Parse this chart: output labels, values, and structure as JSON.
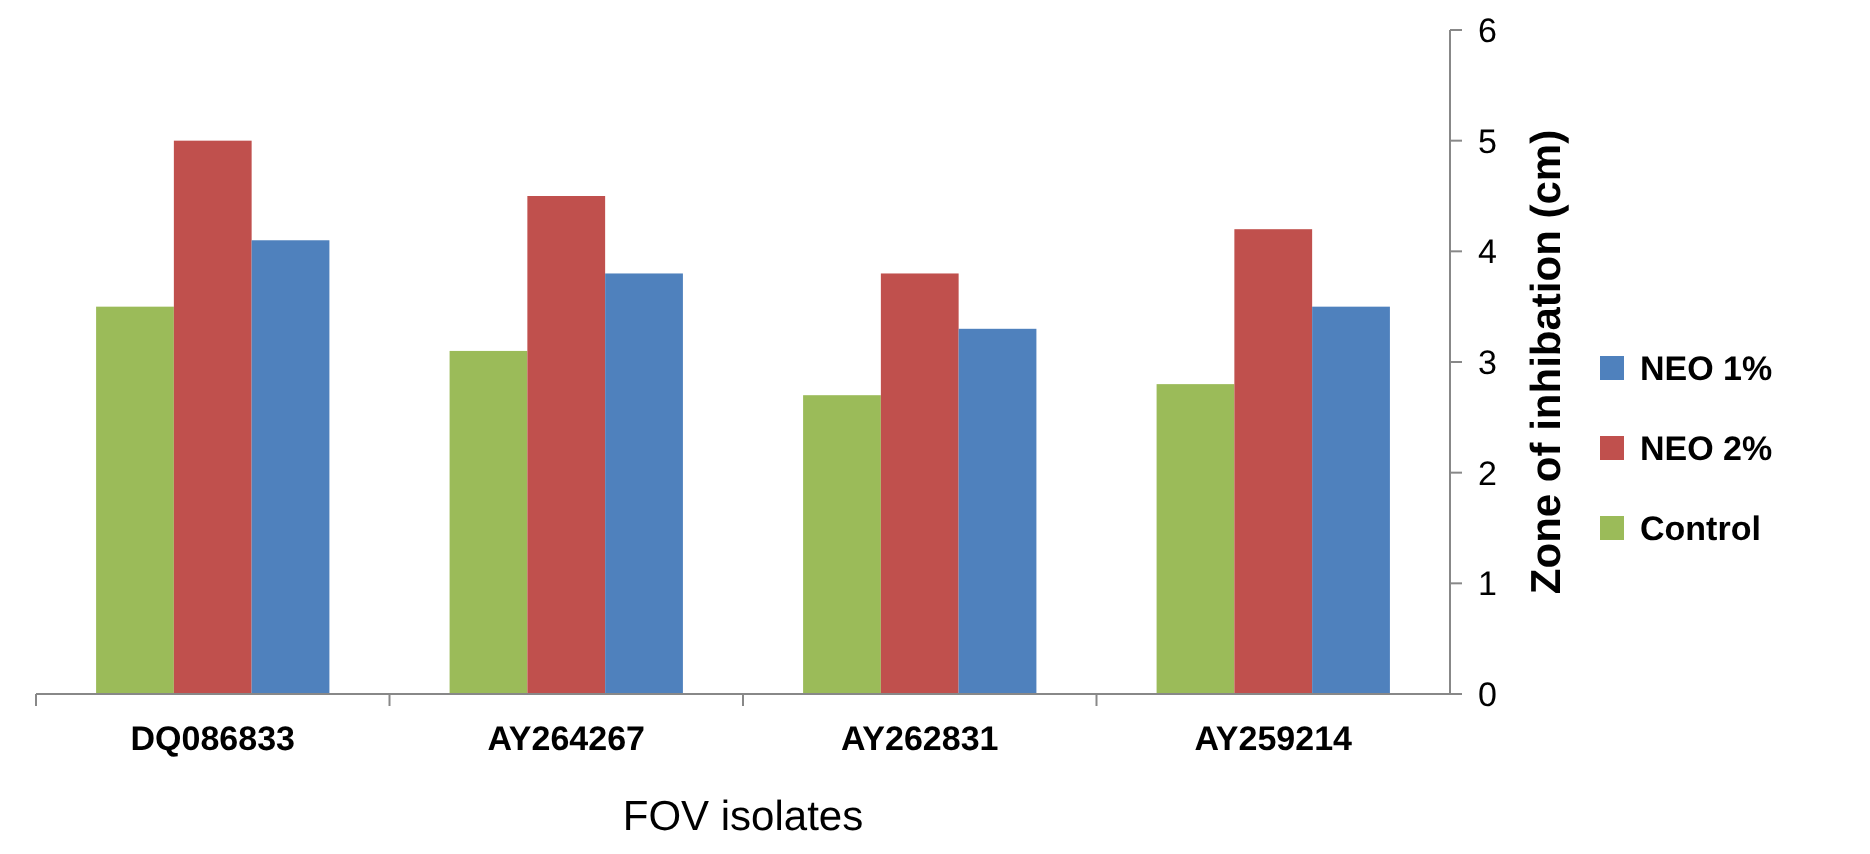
{
  "chart_data": {
    "type": "bar",
    "xlabel": "FOV isolates",
    "ylabel": "Zone of inhibation (cm)",
    "categories": [
      "DQ086833",
      "AY264267",
      "AY262831",
      "AY259214"
    ],
    "series": [
      {
        "name": "Control",
        "color": "#9bbb59",
        "values": [
          3.5,
          3.1,
          2.7,
          2.8
        ]
      },
      {
        "name": "NEO 2%",
        "color": "#c0504d",
        "values": [
          5.0,
          4.5,
          3.8,
          4.2
        ]
      },
      {
        "name": "NEO 1%",
        "color": "#4f81bd",
        "values": [
          4.1,
          3.8,
          3.3,
          3.5
        ]
      }
    ],
    "ylim": [
      0,
      6
    ],
    "yticks": [
      0,
      1,
      2,
      3,
      4,
      5,
      6
    ],
    "legend": "right"
  }
}
